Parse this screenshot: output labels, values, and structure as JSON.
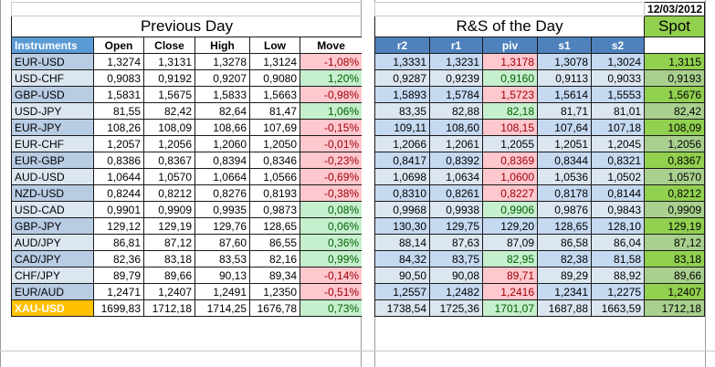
{
  "date": "12/03/2012",
  "previous_day": {
    "title": "Previous Day",
    "headers": [
      "Instruments",
      "Open",
      "Close",
      "High",
      "Low",
      "Move"
    ]
  },
  "rs": {
    "title": "R&S of the Day",
    "headers": [
      "r2",
      "r1",
      "piv",
      "s1",
      "s2"
    ],
    "spot_label": "Spot"
  },
  "rows": [
    {
      "instr": "EUR-USD",
      "open": "1,3274",
      "close": "1,3131",
      "high": "1,3278",
      "low": "1,3124",
      "move": "-1,08%",
      "move_sign": "neg",
      "r2": "1,3331",
      "r1": "1,3231",
      "piv": "1,3178",
      "piv_sign": "neg",
      "s1": "1,3078",
      "s2": "1,3024",
      "spot": "1,3115"
    },
    {
      "instr": "USD-CHF",
      "open": "0,9083",
      "close": "0,9192",
      "high": "0,9207",
      "low": "0,9080",
      "move": "1,20%",
      "move_sign": "pos",
      "r2": "0,9287",
      "r1": "0,9239",
      "piv": "0,9160",
      "piv_sign": "pos",
      "s1": "0,9113",
      "s2": "0,9033",
      "spot": "0,9193"
    },
    {
      "instr": "GBP-USD",
      "open": "1,5831",
      "close": "1,5675",
      "high": "1,5833",
      "low": "1,5663",
      "move": "-0,98%",
      "move_sign": "neg",
      "r2": "1,5893",
      "r1": "1,5784",
      "piv": "1,5723",
      "piv_sign": "neg",
      "s1": "1,5614",
      "s2": "1,5553",
      "spot": "1,5676"
    },
    {
      "instr": "USD-JPY",
      "open": "81,55",
      "close": "82,42",
      "high": "82,64",
      "low": "81,47",
      "move": "1,06%",
      "move_sign": "pos",
      "r2": "83,35",
      "r1": "82,88",
      "piv": "82,18",
      "piv_sign": "pos",
      "s1": "81,71",
      "s2": "81,01",
      "spot": "82,42"
    },
    {
      "instr": "EUR-JPY",
      "open": "108,26",
      "close": "108,09",
      "high": "108,66",
      "low": "107,69",
      "move": "-0,15%",
      "move_sign": "neg",
      "r2": "109,11",
      "r1": "108,60",
      "piv": "108,15",
      "piv_sign": "neg",
      "s1": "107,64",
      "s2": "107,18",
      "spot": "108,09"
    },
    {
      "instr": "EUR-CHF",
      "open": "1,2057",
      "close": "1,2056",
      "high": "1,2060",
      "low": "1,2050",
      "move": "-0,01%",
      "move_sign": "neg",
      "r2": "1,2066",
      "r1": "1,2061",
      "piv": "1,2055",
      "piv_sign": "none",
      "s1": "1,2051",
      "s2": "1,2045",
      "spot": "1,2056"
    },
    {
      "instr": "EUR-GBP",
      "open": "0,8386",
      "close": "0,8367",
      "high": "0,8394",
      "low": "0,8346",
      "move": "-0,23%",
      "move_sign": "neg",
      "r2": "0,8417",
      "r1": "0,8392",
      "piv": "0,8369",
      "piv_sign": "neg",
      "s1": "0,8344",
      "s2": "0,8321",
      "spot": "0,8367"
    },
    {
      "instr": "AUD-USD",
      "open": "1,0644",
      "close": "1,0570",
      "high": "1,0664",
      "low": "1,0566",
      "move": "-0,69%",
      "move_sign": "neg",
      "r2": "1,0698",
      "r1": "1,0634",
      "piv": "1,0600",
      "piv_sign": "neg",
      "s1": "1,0536",
      "s2": "1,0502",
      "spot": "1,0570"
    },
    {
      "instr": "NZD-USD",
      "open": "0,8244",
      "close": "0,8212",
      "high": "0,8276",
      "low": "0,8193",
      "move": "-0,38%",
      "move_sign": "neg",
      "r2": "0,8310",
      "r1": "0,8261",
      "piv": "0,8227",
      "piv_sign": "neg",
      "s1": "0,8178",
      "s2": "0,8144",
      "spot": "0,8212"
    },
    {
      "instr": "USD-CAD",
      "open": "0,9901",
      "close": "0,9909",
      "high": "0,9935",
      "low": "0,9873",
      "move": "0,08%",
      "move_sign": "pos",
      "r2": "0,9968",
      "r1": "0,9938",
      "piv": "0,9906",
      "piv_sign": "pos",
      "s1": "0,9876",
      "s2": "0,9843",
      "spot": "0,9909"
    },
    {
      "instr": "GBP-JPY",
      "open": "129,12",
      "close": "129,19",
      "high": "129,76",
      "low": "128,65",
      "move": "0,06%",
      "move_sign": "pos",
      "r2": "130,30",
      "r1": "129,75",
      "piv": "129,20",
      "piv_sign": "none",
      "s1": "128,65",
      "s2": "128,10",
      "spot": "129,19"
    },
    {
      "instr": "AUD/JPY",
      "open": "86,81",
      "close": "87,12",
      "high": "87,60",
      "low": "86,55",
      "move": "0,36%",
      "move_sign": "pos",
      "r2": "88,14",
      "r1": "87,63",
      "piv": "87,09",
      "piv_sign": "none",
      "s1": "86,58",
      "s2": "86,04",
      "spot": "87,12"
    },
    {
      "instr": "CAD/JPY",
      "open": "82,36",
      "close": "83,18",
      "high": "83,53",
      "low": "82,16",
      "move": "0,99%",
      "move_sign": "pos",
      "r2": "84,32",
      "r1": "83,75",
      "piv": "82,95",
      "piv_sign": "pos",
      "s1": "82,38",
      "s2": "81,58",
      "spot": "83,18"
    },
    {
      "instr": "CHF/JPY",
      "open": "89,79",
      "close": "89,66",
      "high": "90,13",
      "low": "89,34",
      "move": "-0,14%",
      "move_sign": "neg",
      "r2": "90,50",
      "r1": "90,08",
      "piv": "89,71",
      "piv_sign": "neg",
      "s1": "89,29",
      "s2": "88,92",
      "spot": "89,66"
    },
    {
      "instr": "EUR/AUD",
      "open": "1,2471",
      "close": "1,2407",
      "high": "1,2491",
      "low": "1,2350",
      "move": "-0,51%",
      "move_sign": "neg",
      "r2": "1,2557",
      "r1": "1,2482",
      "piv": "1,2416",
      "piv_sign": "neg",
      "s1": "1,2341",
      "s2": "1,2275",
      "spot": "1,2407"
    },
    {
      "instr": "XAU-USD",
      "open": "1699,83",
      "close": "1712,18",
      "high": "1714,25",
      "low": "1676,78",
      "move": "0,73%",
      "move_sign": "pos",
      "r2": "1738,54",
      "r1": "1725,36",
      "piv": "1701,07",
      "piv_sign": "pos",
      "s1": "1687,88",
      "s2": "1663,59",
      "spot": "1712,18"
    }
  ]
}
